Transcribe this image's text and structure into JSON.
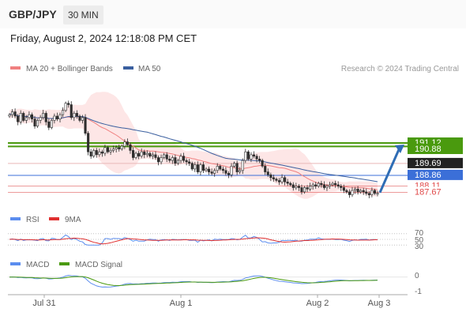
{
  "header": {
    "symbol": "GBP/JPY",
    "timeframe": "30 MIN",
    "timestamp": "Friday, August 2, 2024 12:18:08 PM CET"
  },
  "chart_data": [
    {
      "type": "candlestick",
      "panel": "price",
      "legend": [
        "MA 20 + Bollinger Bands",
        "MA 50"
      ],
      "credit": "Research © 2024 Trading Central",
      "x_ticks": [
        "Jul 31",
        "Aug 1",
        "Aug 2",
        "Aug 3"
      ],
      "close": [
        193.1,
        193.3,
        193.0,
        192.6,
        193.2,
        192.7,
        192.9,
        193.1,
        192.8,
        192.3,
        192.7,
        192.9,
        193.2,
        192.6,
        192.2,
        192.7,
        193.0,
        192.8,
        193.1,
        193.4,
        193.9,
        193.8,
        192.9,
        193.2,
        193.0,
        192.7,
        192.9,
        191.8,
        190.5,
        190.2,
        190.6,
        190.3,
        190.5,
        190.4,
        190.8,
        190.5,
        190.6,
        190.7,
        190.8,
        190.7,
        190.9,
        191.2,
        191.0,
        190.6,
        190.1,
        190.4,
        190.2,
        190.5,
        190.3,
        190.4,
        190.2,
        190.3,
        190.1,
        189.8,
        190.1,
        190.3,
        190.0,
        189.9,
        190.1,
        189.7,
        189.9,
        190.2,
        189.9,
        189.8,
        189.7,
        189.3,
        189.6,
        189.1,
        189.6,
        189.2,
        189.3,
        189.1,
        189.0,
        189.2,
        189.5,
        189.3,
        189.2,
        189.0,
        188.9,
        189.5,
        189.7,
        189.1,
        189.2,
        189.9,
        190.5,
        190.0,
        190.3,
        190.2,
        190.0,
        189.9,
        189.5,
        189.1,
        188.9,
        188.7,
        188.6,
        188.5,
        188.4,
        188.7,
        188.4,
        188.3,
        188.2,
        188.0,
        188.1,
        188.0,
        187.7,
        188.0,
        187.9,
        188.1,
        188.2,
        188.1,
        188.3,
        188.2,
        188.0,
        188.1,
        188.2,
        188.3,
        188.2,
        188.1,
        188.0,
        187.8,
        187.7,
        187.5,
        187.8,
        187.9,
        187.7,
        187.8,
        187.7,
        187.6,
        187.5,
        187.8,
        187.6,
        187.6
      ],
      "levels": [
        {
          "label": "191.12",
          "value": 191.12,
          "color": "#4a9a0e"
        },
        {
          "label": "190.88",
          "value": 190.88,
          "color": "#4a9a0e"
        },
        {
          "label": "189.69",
          "value": 189.69,
          "color": "#222222"
        },
        {
          "label": "188.86",
          "value": 188.86,
          "color": "#3b6fd8"
        },
        {
          "label": "188.11",
          "value": 188.11,
          "color": "#e04848"
        },
        {
          "label": "187.67",
          "value": 187.67,
          "color": "#e04848"
        }
      ],
      "colors": {
        "ma20": "#f08080",
        "ma50": "#3a5f9f",
        "band": "#fde2e2",
        "up": "#2e2e2e",
        "down": "#2e2e2e",
        "arrow": "#2f6db5"
      }
    },
    {
      "type": "line",
      "panel": "rsi",
      "legend": [
        "RSI",
        "9MA"
      ],
      "y_ticks": [
        "70",
        "50",
        "30"
      ],
      "colors": {
        "rsi": "#5b8def",
        "ma": "#e03030"
      }
    },
    {
      "type": "line",
      "panel": "macd",
      "legend": [
        "MACD",
        "MACD Signal"
      ],
      "y_ticks": [
        "0",
        "-1"
      ],
      "colors": {
        "macd": "#5b8def",
        "signal": "#4a9a0e"
      }
    }
  ]
}
